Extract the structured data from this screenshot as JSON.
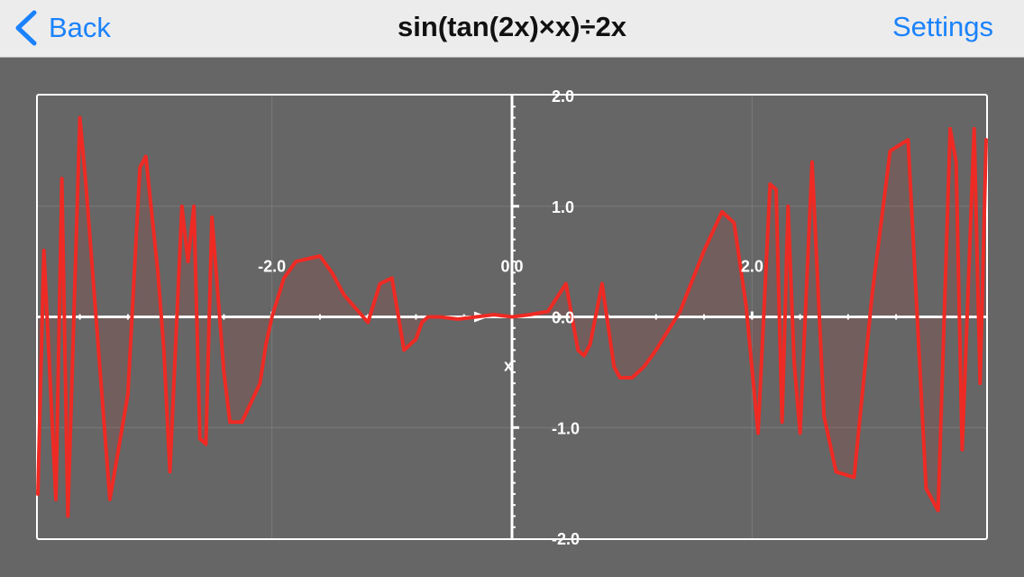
{
  "navbar": {
    "back_label": "Back",
    "title": "sin(tan(2x)×x)÷2x",
    "settings_label": "Settings",
    "accent_color": "#1a82fb",
    "back_icon": "chevron-left-icon"
  },
  "chart_data": {
    "type": "line",
    "title": "sin(tan(2x)×x)÷2x",
    "xlabel": "",
    "ylabel": "",
    "xlim": [
      -3.95,
      3.95
    ],
    "ylim": [
      -2.0,
      2.0
    ],
    "grid": true,
    "x_tick_labels": [
      "-2.0",
      "0.0",
      "2.0"
    ],
    "x_tick_values": [
      -2.0,
      0.0,
      2.0
    ],
    "y_tick_labels": [
      "2.0",
      "1.0",
      "0.0",
      "-1.0",
      "-2.0"
    ],
    "y_tick_values": [
      2.0,
      1.0,
      0.0,
      -1.0,
      -2.0
    ],
    "x_axis_label": "x",
    "series": [
      {
        "color": "#ee2a24",
        "fill": true,
        "function": "sin(tan(2x)*x)/(2x)",
        "x": [
          -3.95,
          -3.9,
          -3.8,
          -3.75,
          -3.7,
          -3.6,
          -3.55,
          -3.35,
          -3.2,
          -3.1,
          -3.05,
          -2.95,
          -2.9,
          -2.85,
          -2.75,
          -2.7,
          -2.65,
          -2.6,
          -2.55,
          -2.5,
          -2.4,
          -2.35,
          -2.25,
          -2.1,
          -2.05,
          -2.0,
          -1.9,
          -1.8,
          -1.6,
          -1.5,
          -1.4,
          -1.2,
          -1.1,
          -1.0,
          -0.9,
          -0.8,
          -0.75,
          -0.7,
          -0.6,
          -0.45,
          -0.3,
          -0.15,
          0.0,
          0.15,
          0.3,
          0.45,
          0.55,
          0.6,
          0.65,
          0.75,
          0.85,
          0.9,
          0.95,
          1.0,
          1.1,
          1.2,
          1.4,
          1.6,
          1.75,
          1.85,
          1.95,
          2.05,
          2.15,
          2.2,
          2.25,
          2.3,
          2.35,
          2.4,
          2.5,
          2.6,
          2.7,
          2.85,
          3.0,
          3.15,
          3.3,
          3.45,
          3.55,
          3.65,
          3.7,
          3.75,
          3.85,
          3.9,
          3.95
        ],
        "y": [
          -1.6,
          0.6,
          -1.65,
          1.25,
          -1.8,
          1.8,
          1.2,
          -1.65,
          -0.7,
          1.35,
          1.45,
          0.4,
          -0.3,
          -1.4,
          1.0,
          0.5,
          1.0,
          -1.1,
          -1.15,
          0.9,
          -0.5,
          -0.95,
          -0.95,
          -0.6,
          -0.25,
          0.0,
          0.35,
          0.5,
          0.55,
          0.4,
          0.2,
          -0.05,
          0.3,
          0.35,
          -0.3,
          -0.2,
          -0.05,
          0.0,
          0.0,
          -0.02,
          0.0,
          0.02,
          0.0,
          0.02,
          0.05,
          0.3,
          -0.3,
          -0.35,
          -0.25,
          0.3,
          -0.45,
          -0.55,
          -0.55,
          -0.55,
          -0.45,
          -0.3,
          0.05,
          0.6,
          0.95,
          0.85,
          0.1,
          -1.05,
          1.2,
          1.15,
          -0.95,
          1.0,
          -0.4,
          -1.05,
          1.4,
          -0.9,
          -1.4,
          -1.45,
          0.2,
          1.5,
          1.6,
          -1.55,
          -1.75,
          1.7,
          1.4,
          -1.2,
          1.7,
          -0.6,
          1.6
        ]
      }
    ]
  }
}
